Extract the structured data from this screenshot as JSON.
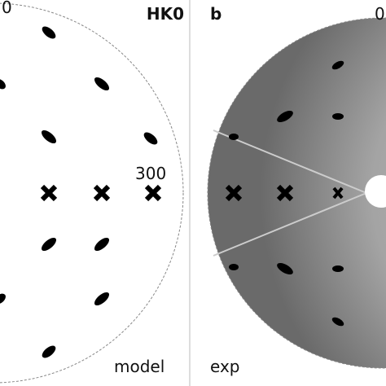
{
  "panels": [
    {
      "corner_label": "0",
      "title": "HK0",
      "axis_label": "300",
      "caption": "model"
    },
    {
      "letter": "b",
      "corner_label": "0",
      "caption": "exp"
    }
  ]
}
